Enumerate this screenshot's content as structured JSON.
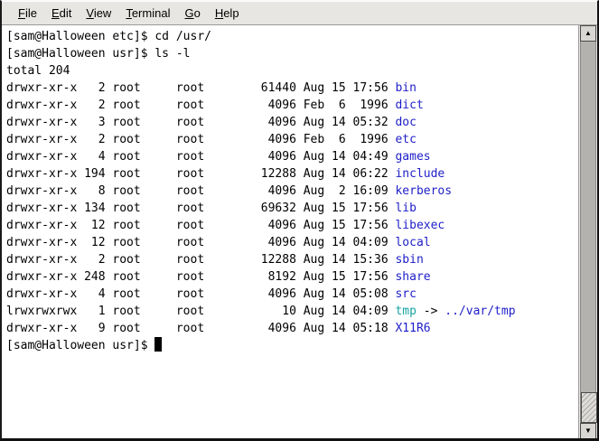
{
  "window_title": "Terminal",
  "colors": {
    "directory": "#1e1ec9",
    "symlink": "#18a2a2",
    "text": "#000000",
    "terminal_bg": "#ffffff",
    "menubar_bg": "#e8e6e3"
  },
  "menubar": {
    "items": [
      {
        "hotkey": "F",
        "rest": "ile"
      },
      {
        "hotkey": "E",
        "rest": "dit"
      },
      {
        "hotkey": "V",
        "rest": "iew"
      },
      {
        "hotkey": "T",
        "rest": "erminal"
      },
      {
        "hotkey": "G",
        "rest": "o"
      },
      {
        "hotkey": "H",
        "rest": "elp"
      }
    ]
  },
  "terminal": {
    "lines": [
      {
        "text": "[sam@Halloween etc]$ cd /usr/"
      },
      {
        "text": "[sam@Halloween usr]$ ls -l"
      },
      {
        "text": "total 204"
      },
      {
        "pre": "drwxr-xr-x   2 root     root        61440 Aug 15 17:56 ",
        "name": "bin",
        "cls": "dir"
      },
      {
        "pre": "drwxr-xr-x   2 root     root         4096 Feb  6  1996 ",
        "name": "dict",
        "cls": "dir"
      },
      {
        "pre": "drwxr-xr-x   3 root     root         4096 Aug 14 05:32 ",
        "name": "doc",
        "cls": "dir"
      },
      {
        "pre": "drwxr-xr-x   2 root     root         4096 Feb  6  1996 ",
        "name": "etc",
        "cls": "dir"
      },
      {
        "pre": "drwxr-xr-x   4 root     root         4096 Aug 14 04:49 ",
        "name": "games",
        "cls": "dir"
      },
      {
        "pre": "drwxr-xr-x 194 root     root        12288 Aug 14 06:22 ",
        "name": "include",
        "cls": "dir"
      },
      {
        "pre": "drwxr-xr-x   8 root     root         4096 Aug  2 16:09 ",
        "name": "kerberos",
        "cls": "dir"
      },
      {
        "pre": "drwxr-xr-x 134 root     root        69632 Aug 15 17:56 ",
        "name": "lib",
        "cls": "dir"
      },
      {
        "pre": "drwxr-xr-x  12 root     root         4096 Aug 15 17:56 ",
        "name": "libexec",
        "cls": "dir"
      },
      {
        "pre": "drwxr-xr-x  12 root     root         4096 Aug 14 04:09 ",
        "name": "local",
        "cls": "dir"
      },
      {
        "pre": "drwxr-xr-x   2 root     root        12288 Aug 14 15:36 ",
        "name": "sbin",
        "cls": "dir"
      },
      {
        "pre": "drwxr-xr-x 248 root     root         8192 Aug 15 17:56 ",
        "name": "share",
        "cls": "dir"
      },
      {
        "pre": "drwxr-xr-x   4 root     root         4096 Aug 14 05:08 ",
        "name": "src",
        "cls": "dir"
      },
      {
        "pre": "lrwxrwxrwx   1 root     root           10 Aug 14 04:09 ",
        "name": "tmp",
        "cls": "symlink",
        "sep": " -> ",
        "target": "../var/tmp",
        "tcls": "dir"
      },
      {
        "pre": "drwxr-xr-x   9 root     root         4096 Aug 14 05:18 ",
        "name": "X11R6",
        "cls": "dir"
      },
      {
        "text": "[sam@Halloween usr]$ ",
        "cursor": true
      }
    ]
  },
  "scrollbar": {
    "up_arrow": "▲",
    "down_arrow": "▼"
  }
}
